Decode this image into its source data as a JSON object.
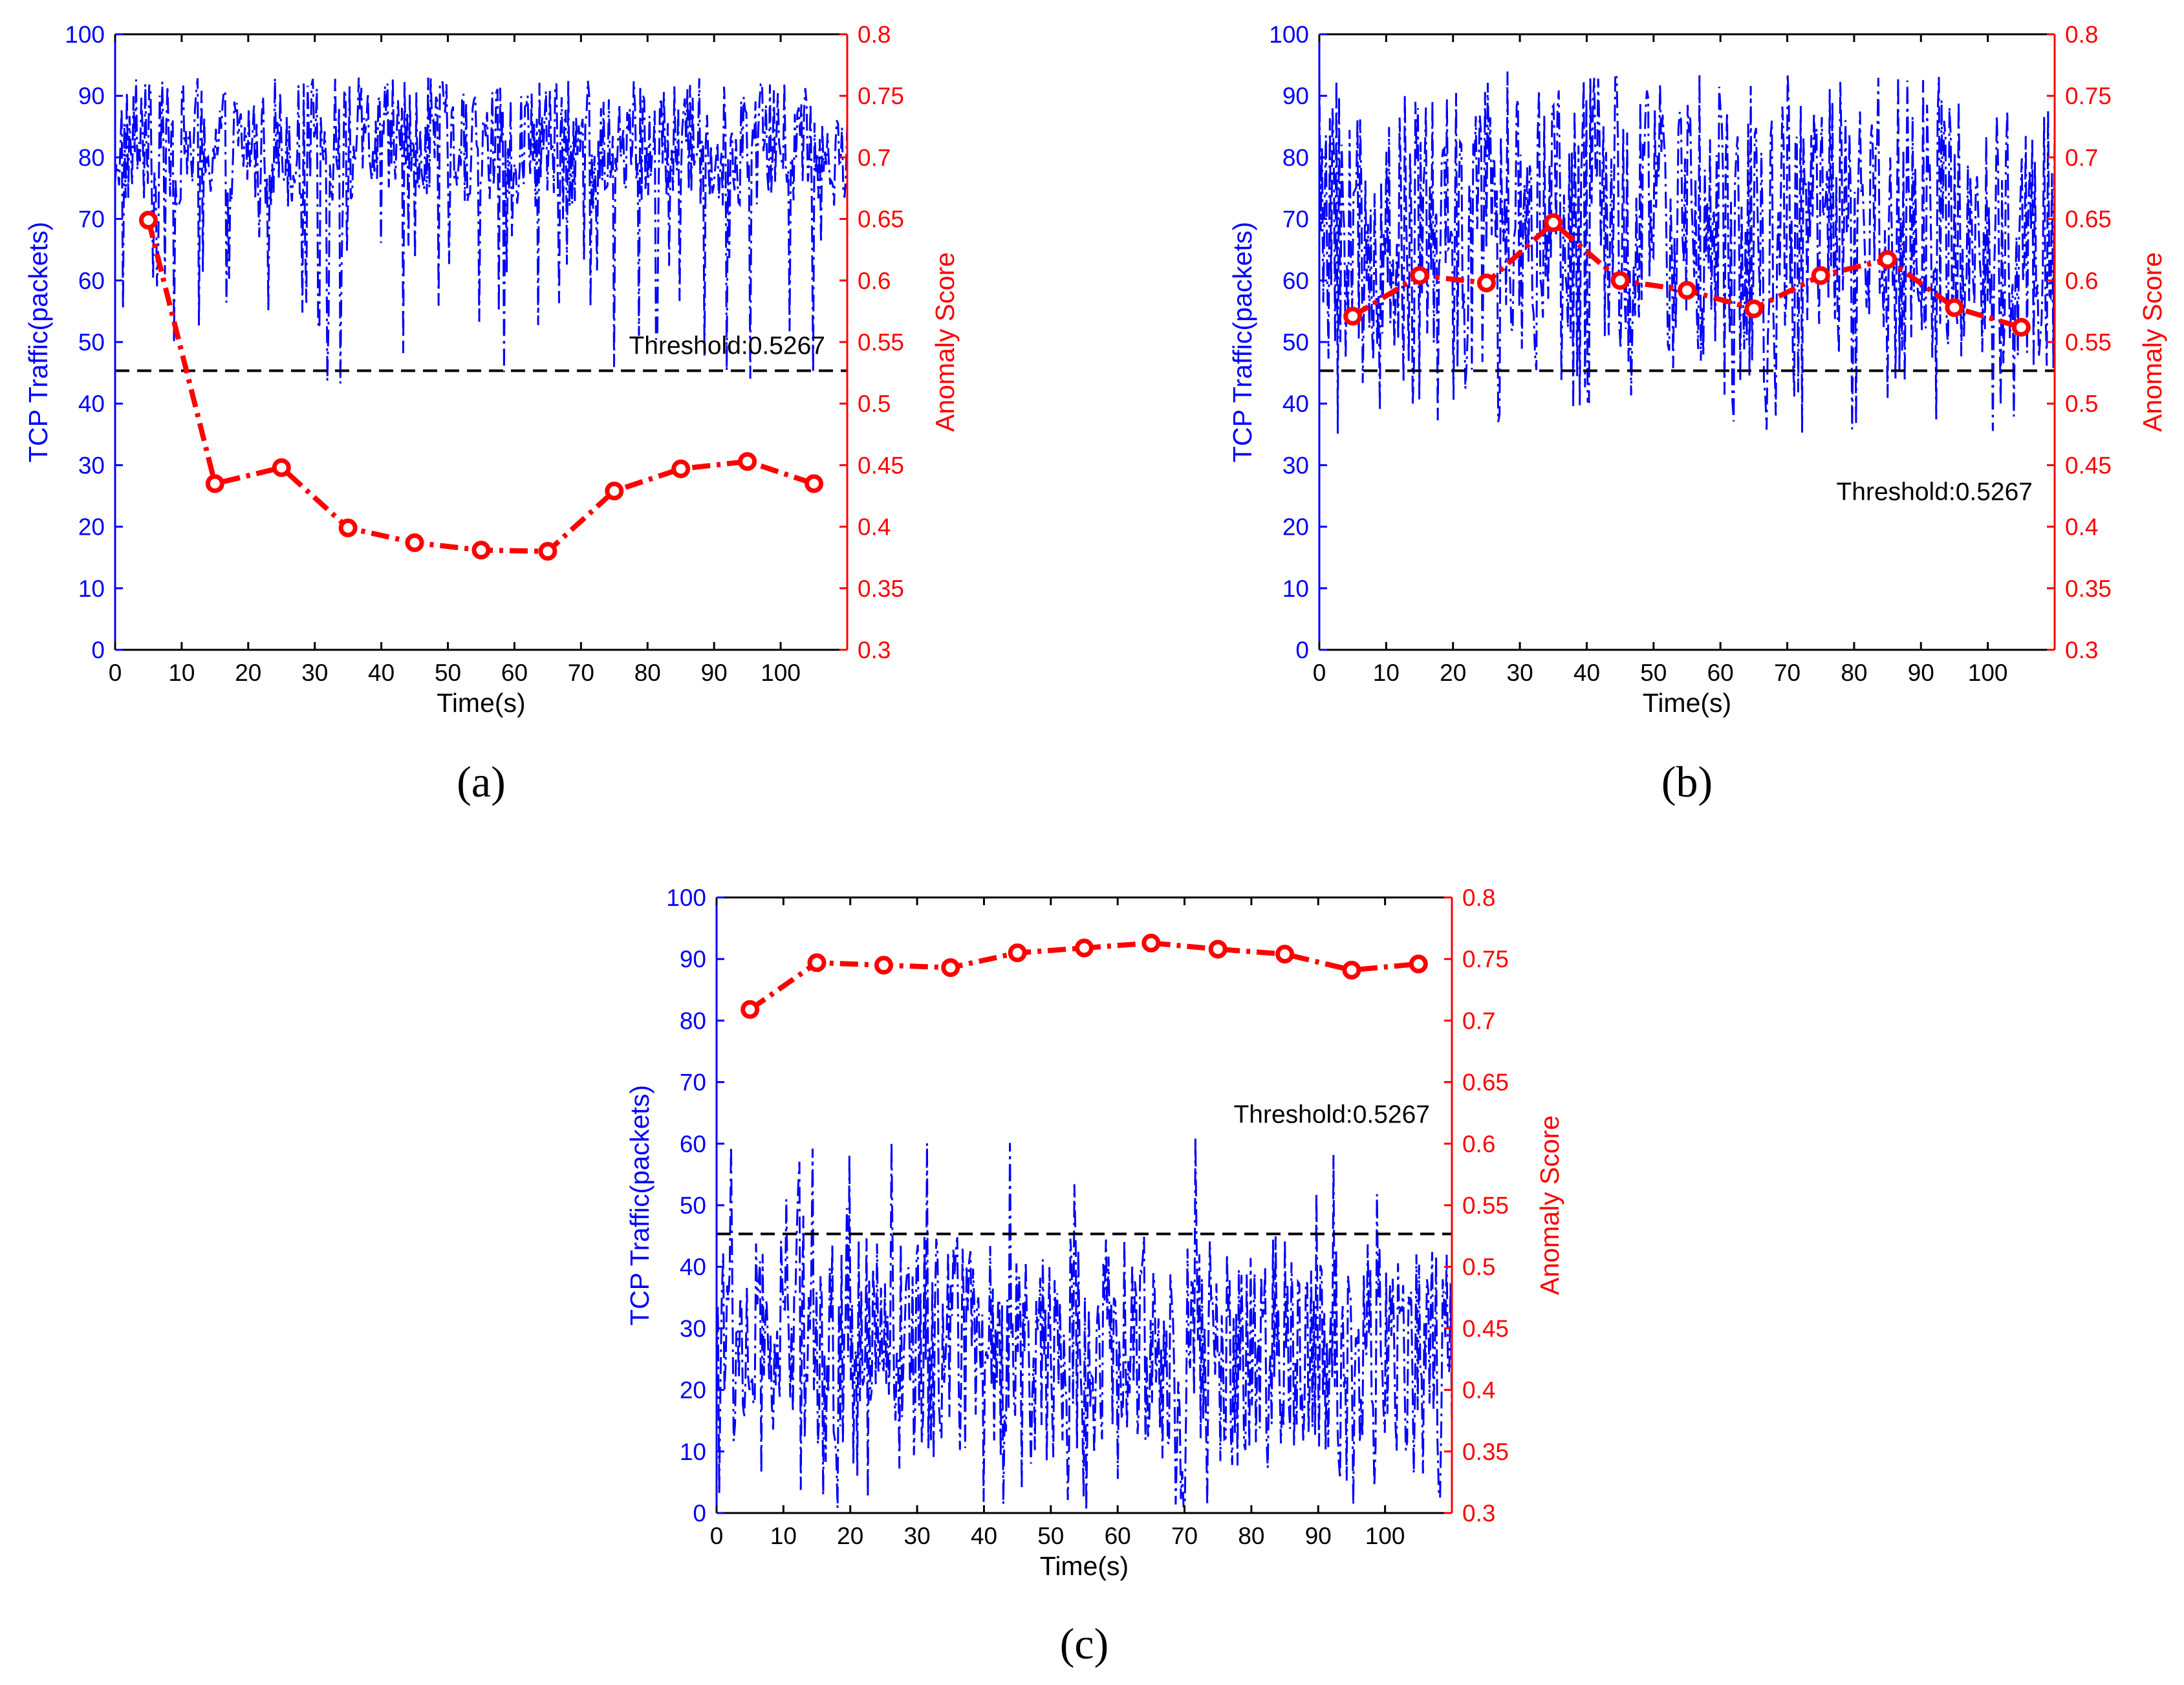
{
  "chart_data": [
    {
      "type": "line",
      "panel_label": "(a)",
      "x": [
        5,
        15,
        25,
        35,
        45,
        55,
        65,
        75,
        85,
        95,
        105
      ],
      "series": [
        {
          "name": "Anomaly Score",
          "axis": "right",
          "color": "#ff0000",
          "values": [
            0.649,
            0.435,
            0.448,
            0.399,
            0.387,
            0.381,
            0.38,
            0.429,
            0.447,
            0.453,
            0.435
          ]
        },
        {
          "name": "TCP Traffic",
          "axis": "left",
          "color": "#0000ff",
          "style": "dash-dot",
          "range": [
            43,
            93
          ],
          "typical": [
            72,
            92
          ]
        }
      ],
      "threshold": {
        "value": 0.5267,
        "label": "Threshold:0.5267",
        "label_position": "above-right"
      },
      "xlabel": "Time(s)",
      "ylabel_left": "TCP Traffic(packets)",
      "ylabel_right": "Anomaly Score",
      "xlim": [
        0,
        110
      ],
      "ylim_left": [
        0,
        100
      ],
      "ylim_right": [
        0.3,
        0.8
      ],
      "xticks": [
        0,
        10,
        20,
        30,
        40,
        50,
        60,
        70,
        80,
        90,
        100
      ],
      "yticks_left": [
        "0",
        "10",
        "20",
        "30",
        "40",
        "50",
        "60",
        "70",
        "80",
        "90",
        "100"
      ],
      "yticks_right": [
        "0.3",
        "0.35",
        "0.4",
        "0.45",
        "0.5",
        "0.55",
        "0.6",
        "0.65",
        "0.7",
        "0.75",
        "0.8"
      ]
    },
    {
      "type": "line",
      "panel_label": "(b)",
      "x": [
        5,
        15,
        25,
        35,
        45,
        55,
        65,
        75,
        85,
        95,
        105
      ],
      "series": [
        {
          "name": "Anomaly Score",
          "axis": "right",
          "color": "#ff0000",
          "values": [
            0.571,
            0.604,
            0.598,
            0.647,
            0.6,
            0.592,
            0.577,
            0.604,
            0.617,
            0.578,
            0.562
          ]
        },
        {
          "name": "TCP Traffic",
          "axis": "left",
          "color": "#0000ff",
          "style": "dash-dot",
          "range": [
            35,
            94
          ],
          "typical": [
            45,
            90
          ]
        }
      ],
      "threshold": {
        "value": 0.5267,
        "label": "Threshold:0.5267",
        "label_position": "below-right"
      },
      "xlabel": "Time(s)",
      "ylabel_left": "TCP Traffic(packets)",
      "ylabel_right": "Anomaly Score",
      "xlim": [
        0,
        110
      ],
      "ylim_left": [
        0,
        100
      ],
      "ylim_right": [
        0.3,
        0.8
      ],
      "xticks": [
        0,
        10,
        20,
        30,
        40,
        50,
        60,
        70,
        80,
        90,
        100
      ],
      "yticks_left": [
        "0",
        "10",
        "20",
        "30",
        "40",
        "50",
        "60",
        "70",
        "80",
        "90",
        "100"
      ],
      "yticks_right": [
        "0.3",
        "0.35",
        "0.4",
        "0.45",
        "0.5",
        "0.55",
        "0.6",
        "0.65",
        "0.7",
        "0.75",
        "0.8"
      ]
    },
    {
      "type": "line",
      "panel_label": "(c)",
      "x": [
        5,
        15,
        25,
        35,
        45,
        55,
        65,
        75,
        85,
        95,
        105
      ],
      "series": [
        {
          "name": "Anomaly Score",
          "axis": "right",
          "color": "#ff0000",
          "values": [
            0.709,
            0.747,
            0.745,
            0.743,
            0.755,
            0.759,
            0.763,
            0.758,
            0.754,
            0.741,
            0.746
          ]
        },
        {
          "name": "TCP Traffic",
          "axis": "left",
          "color": "#0000ff",
          "style": "dash-dot",
          "range": [
            0,
            62
          ],
          "typical": [
            10,
            45
          ]
        }
      ],
      "threshold": {
        "value": 0.5267,
        "label": "Threshold:0.5267",
        "label_position": "above-right-high"
      },
      "xlabel": "Time(s)",
      "ylabel_left": "TCP Traffic(packets)",
      "ylabel_right": "Anomaly Score",
      "xlim": [
        0,
        110
      ],
      "ylim_left": [
        0,
        100
      ],
      "ylim_right": [
        0.3,
        0.8
      ],
      "xticks": [
        0,
        10,
        20,
        30,
        40,
        50,
        60,
        70,
        80,
        90,
        100
      ],
      "yticks_left": [
        "0",
        "10",
        "20",
        "30",
        "40",
        "50",
        "60",
        "70",
        "80",
        "90",
        "100"
      ],
      "yticks_right": [
        "0.3",
        "0.35",
        "0.4",
        "0.45",
        "0.5",
        "0.55",
        "0.6",
        "0.65",
        "0.7",
        "0.75",
        "0.8"
      ]
    }
  ]
}
